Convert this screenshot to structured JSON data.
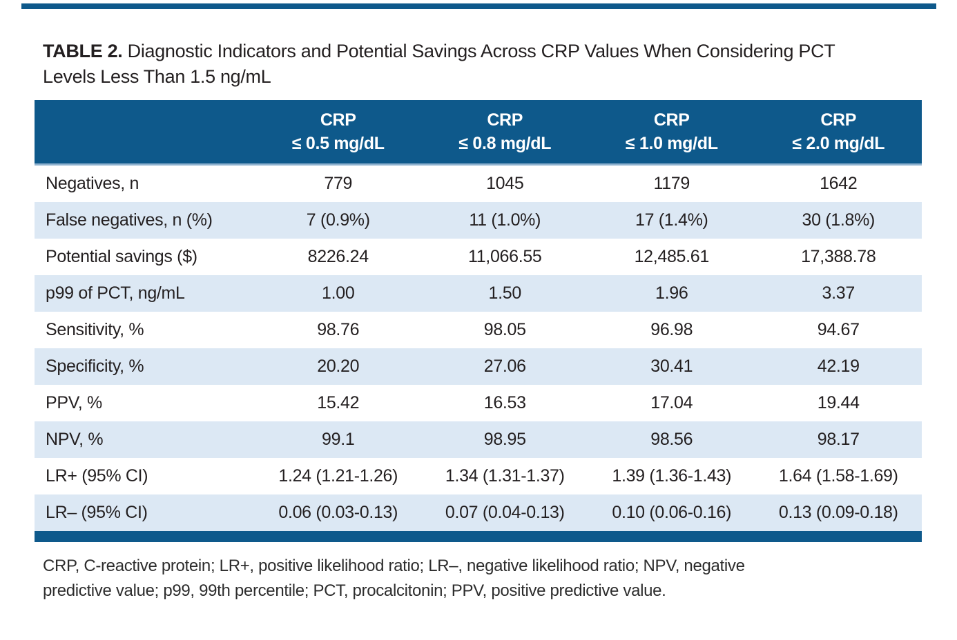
{
  "colors": {
    "header_blue": "#0E598B",
    "band_blue": "#DCE8F4",
    "hairline_blue": "#8FB2CF",
    "text_dark": "#231F20"
  },
  "title": {
    "label": "TABLE 2.",
    "text_line1": "Diagnostic Indicators and Potential Savings Across CRP Values When Considering PCT",
    "text_line2": "Levels Less Than 1.5 ng/mL"
  },
  "table": {
    "columns": [
      {
        "line1": "CRP",
        "line2": "≤ 0.5 mg/dL"
      },
      {
        "line1": "CRP",
        "line2": "≤ 0.8 mg/dL"
      },
      {
        "line1": "CRP",
        "line2": "≤ 1.0 mg/dL"
      },
      {
        "line1": "CRP",
        "line2": "≤ 2.0 mg/dL"
      }
    ],
    "rows": [
      {
        "label": "Negatives, n",
        "values": [
          "779",
          "1045",
          "1179",
          "1642"
        ]
      },
      {
        "label": "False negatives, n (%)",
        "values": [
          "7 (0.9%)",
          "11 (1.0%)",
          "17 (1.4%)",
          "30 (1.8%)"
        ]
      },
      {
        "label": "Potential savings ($)",
        "values": [
          "8226.24",
          "11,066.55",
          "12,485.61",
          "17,388.78"
        ]
      },
      {
        "label": "p99 of PCT, ng/mL",
        "values": [
          "1.00",
          "1.50",
          "1.96",
          "3.37"
        ]
      },
      {
        "label": "Sensitivity, %",
        "values": [
          "98.76",
          "98.05",
          "96.98",
          "94.67"
        ]
      },
      {
        "label": "Specificity, %",
        "values": [
          "20.20",
          "27.06",
          "30.41",
          "42.19"
        ]
      },
      {
        "label": "PPV, %",
        "values": [
          "15.42",
          "16.53",
          "17.04",
          "19.44"
        ]
      },
      {
        "label": "NPV, %",
        "values": [
          "99.1",
          "98.95",
          "98.56",
          "98.17"
        ]
      },
      {
        "label": "LR+ (95% CI)",
        "values": [
          "1.24 (1.21-1.26)",
          "1.34 (1.31-1.37)",
          "1.39 (1.36-1.43)",
          "1.64 (1.58-1.69)"
        ]
      },
      {
        "label": "LR– (95% CI)",
        "values": [
          "0.06 (0.03-0.13)",
          "0.07 (0.04-0.13)",
          "0.10 (0.06-0.16)",
          "0.13 (0.09-0.18)"
        ]
      }
    ]
  },
  "footnote": {
    "line1": "CRP, C-reactive protein; LR+, positive likelihood ratio; LR–, negative likelihood ratio; NPV, negative",
    "line2": "predictive value; p99, 99th percentile; PCT, procalcitonin; PPV, positive predictive value."
  },
  "chart_data": {
    "type": "table",
    "title": "TABLE 2. Diagnostic Indicators and Potential Savings Across CRP Values When Considering PCT Levels Less Than 1.5 ng/mL",
    "column_headers": [
      "",
      "CRP ≤ 0.5 mg/dL",
      "CRP ≤ 0.8 mg/dL",
      "CRP ≤ 1.0 mg/dL",
      "CRP ≤ 2.0 mg/dL"
    ],
    "rows": [
      [
        "Negatives, n",
        "779",
        "1045",
        "1179",
        "1642"
      ],
      [
        "False negatives, n (%)",
        "7 (0.9%)",
        "11 (1.0%)",
        "17 (1.4%)",
        "30 (1.8%)"
      ],
      [
        "Potential savings ($)",
        "8226.24",
        "11,066.55",
        "12,485.61",
        "17,388.78"
      ],
      [
        "p99 of PCT, ng/mL",
        "1.00",
        "1.50",
        "1.96",
        "3.37"
      ],
      [
        "Sensitivity, %",
        "98.76",
        "98.05",
        "96.98",
        "94.67"
      ],
      [
        "Specificity, %",
        "20.20",
        "27.06",
        "30.41",
        "42.19"
      ],
      [
        "PPV, %",
        "15.42",
        "16.53",
        "17.04",
        "19.44"
      ],
      [
        "NPV, %",
        "99.1",
        "98.95",
        "98.56",
        "98.17"
      ],
      [
        "LR+ (95% CI)",
        "1.24 (1.21-1.26)",
        "1.34 (1.31-1.37)",
        "1.39 (1.36-1.43)",
        "1.64 (1.58-1.69)"
      ],
      [
        "LR– (95% CI)",
        "0.06 (0.03-0.13)",
        "0.07 (0.04-0.13)",
        "0.10 (0.06-0.16)",
        "0.13 (0.09-0.18)"
      ]
    ],
    "footnote": "CRP, C-reactive protein; LR+, positive likelihood ratio; LR–, negative likelihood ratio; NPV, negative predictive value; p99, 99th percentile; PCT, procalcitonin; PPV, positive predictive value."
  }
}
